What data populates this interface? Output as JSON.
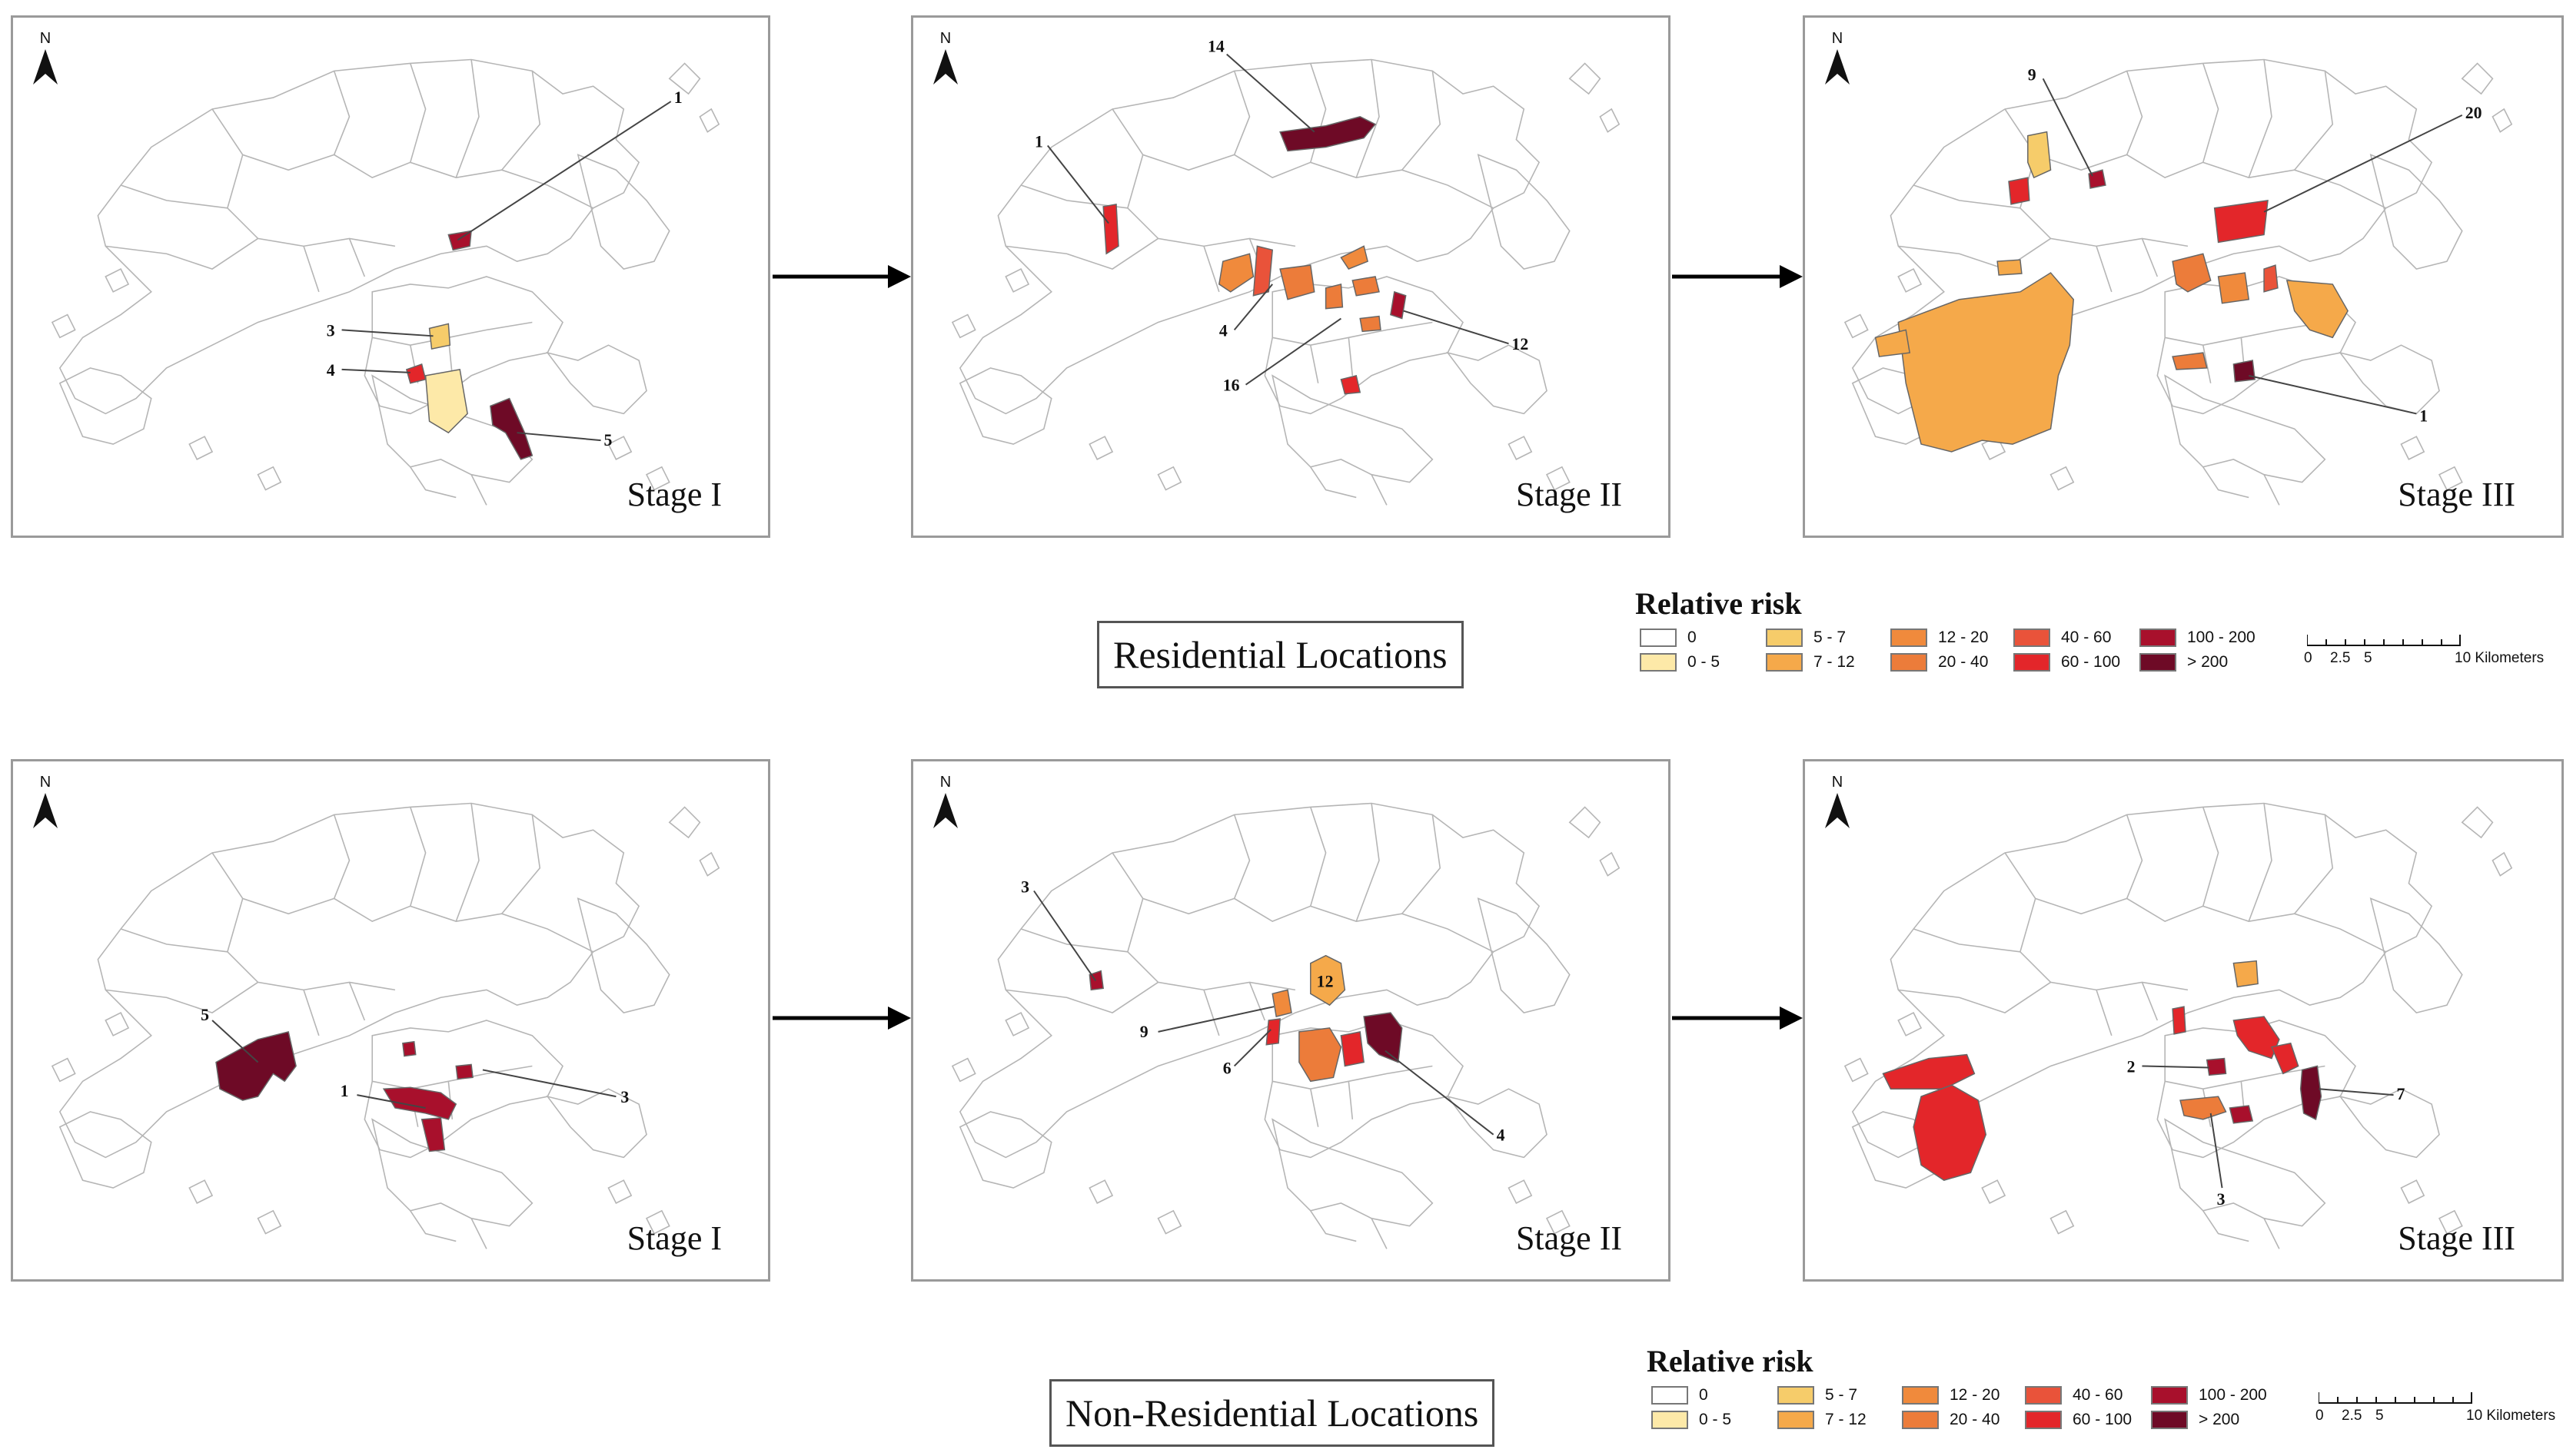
{
  "map_data": {
    "colors": {
      "c0": "#ffffff",
      "c0_5": "#fde9a8",
      "c5_7": "#f6cc6a",
      "c7_12": "#f5a94a",
      "c12_20": "#f08a3c",
      "c20_40": "#ec7c3a",
      "c40_60": "#e9533a",
      "c60_100": "#e3262a",
      "c100_200": "#a8102c",
      "c200": "#6e0a26"
    },
    "north_label": "N",
    "arrow_icon": "right-arrow-icon",
    "residential": {
      "section_label": "Residential Locations",
      "panels": [
        {
          "stage": "Stage I",
          "callouts": [
            "1",
            "3",
            "4",
            "5"
          ]
        },
        {
          "stage": "Stage II",
          "callouts": [
            "14",
            "1",
            "4",
            "16",
            "12"
          ]
        },
        {
          "stage": "Stage III",
          "callouts": [
            "9",
            "20",
            "1"
          ]
        }
      ]
    },
    "non_residential": {
      "section_label": "Non-Residential Locations",
      "panels": [
        {
          "stage": "Stage I",
          "callouts": [
            "5",
            "1",
            "3"
          ]
        },
        {
          "stage": "Stage II",
          "callouts": [
            "3",
            "12",
            "9",
            "6",
            "4"
          ]
        },
        {
          "stage": "Stage III",
          "callouts": [
            "2",
            "7",
            "3"
          ]
        }
      ]
    },
    "legend": {
      "title": "Relative risk",
      "items": [
        {
          "label": "0",
          "color": "#ffffff"
        },
        {
          "label": "0 - 5",
          "color": "#fde9a8"
        },
        {
          "label": "5 - 7",
          "color": "#f6cc6a"
        },
        {
          "label": "7 - 12",
          "color": "#f5a94a"
        },
        {
          "label": "12 - 20",
          "color": "#f08a3c"
        },
        {
          "label": "20 - 40",
          "color": "#ec7c3a"
        },
        {
          "label": "40 - 60",
          "color": "#e9533a"
        },
        {
          "label": "60 - 100",
          "color": "#e3262a"
        },
        {
          "label": "100 - 200",
          "color": "#a8102c"
        },
        {
          "label": "> 200",
          "color": "#6e0a26"
        }
      ],
      "scale_labels": [
        "0",
        "2.5",
        "5",
        "10 Kilometers"
      ]
    }
  }
}
